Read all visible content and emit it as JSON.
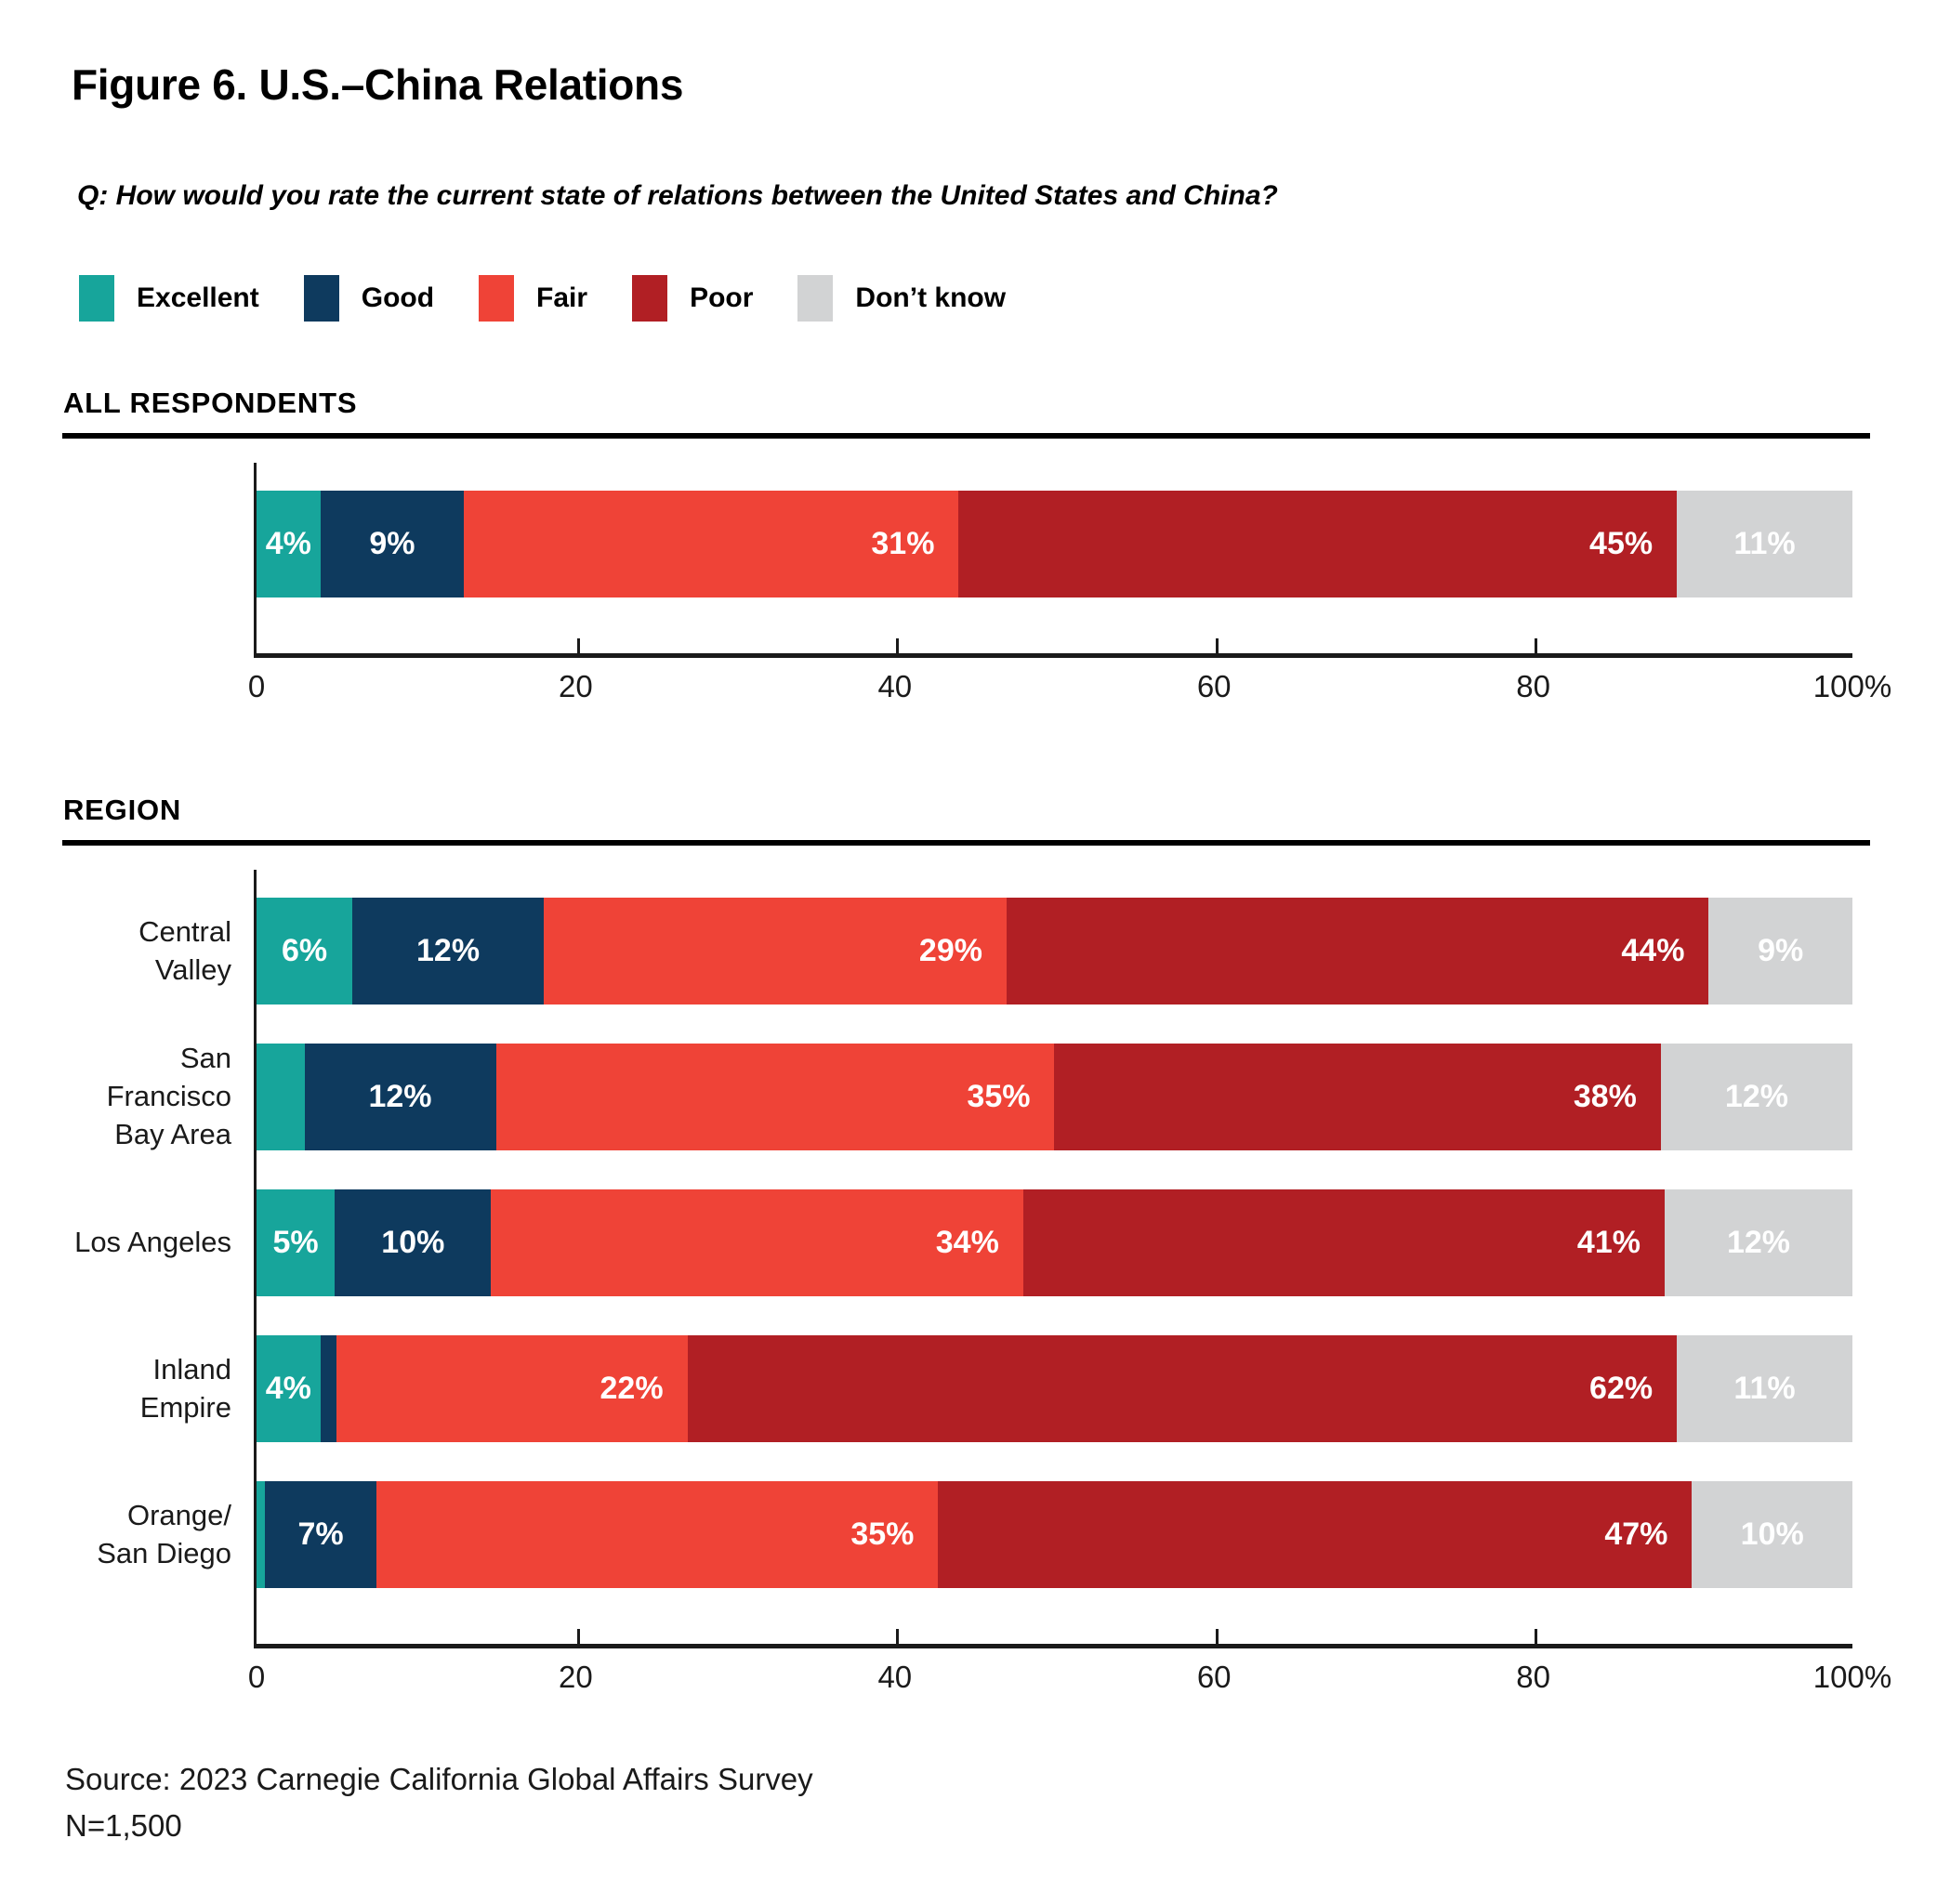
{
  "title": "Figure 6. U.S.–China Relations",
  "question": "Q: How would you rate the current state of relations between the United States and China?",
  "source": {
    "line1": "Source: 2023 Carnegie California Global Affairs Survey",
    "line2": "N=1,500"
  },
  "colors": {
    "excellent": "#17A59B",
    "good": "#0E3A5E",
    "fair": "#EF4337",
    "poor": "#B11F24",
    "dont_know": "#D2D3D4",
    "axis": "#1a1a1a",
    "heading_rule": "#000000",
    "value_label": "#ffffff"
  },
  "chart_data": {
    "type": "bar",
    "orientation": "horizontal",
    "stacked": true,
    "unit": "percent",
    "xlim": [
      0,
      100
    ],
    "x_tick_values": [
      0,
      20,
      40,
      60,
      80,
      100
    ],
    "x_tick_labels": [
      "0",
      "20",
      "40",
      "60",
      "80",
      "100%"
    ],
    "grid": false,
    "legend_position": "top",
    "series": [
      {
        "name": "Excellent",
        "color_key": "excellent"
      },
      {
        "name": "Good",
        "color_key": "good"
      },
      {
        "name": "Fair",
        "color_key": "fair"
      },
      {
        "name": "Poor",
        "color_key": "poor"
      },
      {
        "name": "Don’t know",
        "color_key": "dont_know"
      }
    ],
    "groups": [
      {
        "heading": "ALL RESPONDENTS",
        "rows": [
          {
            "label": "",
            "values": [
              4,
              9,
              31,
              45,
              11
            ],
            "value_labels": [
              "4%",
              "9%",
              "31%",
              "45%",
              "11%"
            ]
          }
        ]
      },
      {
        "heading": "REGION",
        "rows": [
          {
            "label": "Central Valley",
            "values": [
              6,
              12,
              29,
              44,
              9
            ],
            "value_labels": [
              "6%",
              "12%",
              "29%",
              "44%",
              "9%"
            ]
          },
          {
            "label": "San Francisco\nBay Area",
            "values": [
              3,
              12,
              35,
              38,
              12
            ],
            "value_labels": [
              "",
              "12%",
              "35%",
              "38%",
              "12%"
            ]
          },
          {
            "label": "Los Angeles",
            "values": [
              5,
              10,
              34,
              41,
              12
            ],
            "value_labels": [
              "5%",
              "10%",
              "34%",
              "41%",
              "12%"
            ]
          },
          {
            "label": "Inland Empire",
            "values": [
              4,
              1,
              22,
              62,
              11
            ],
            "value_labels": [
              "4%",
              "",
              "22%",
              "62%",
              "11%"
            ]
          },
          {
            "label": "Orange/\nSan Diego",
            "values": [
              0.5,
              7,
              35,
              47,
              10
            ],
            "value_labels": [
              "",
              "7%",
              "35%",
              "47%",
              "10%"
            ]
          }
        ]
      }
    ]
  }
}
